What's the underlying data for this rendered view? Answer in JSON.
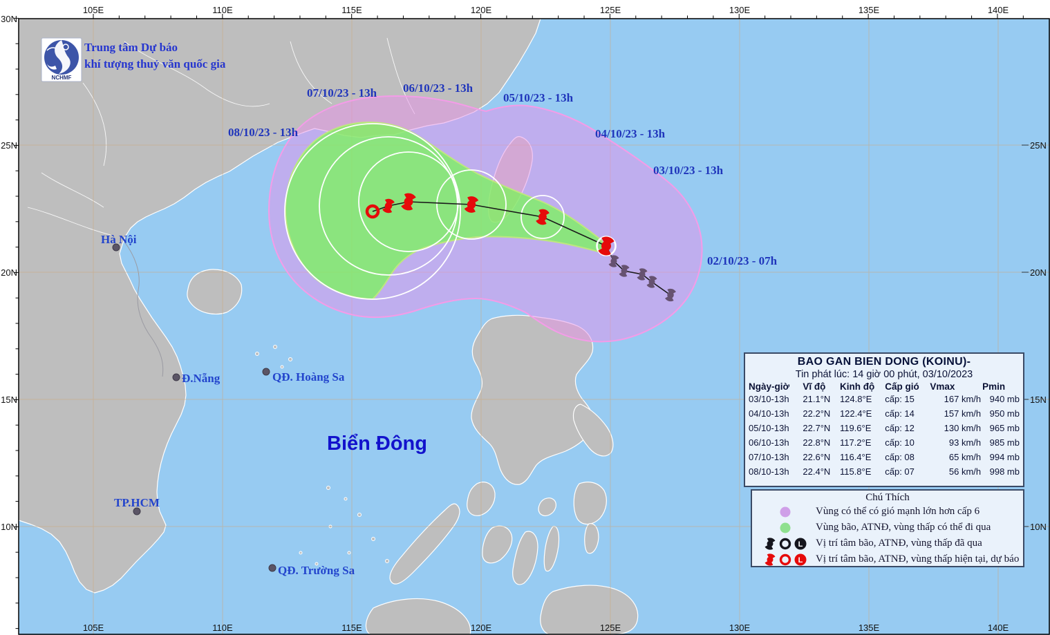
{
  "agency": {
    "line1": "Trung tâm Dự báo",
    "line2": "khí tượng thuỷ văn quốc gia",
    "logo_text": "NCHMF"
  },
  "map": {
    "sea_label": "Biển Đông",
    "lon_labels": [
      "105E",
      "110E",
      "115E",
      "120E",
      "125E",
      "130E",
      "135E",
      "140E"
    ],
    "left_lat_labels": [
      "30N",
      "25N",
      "20N",
      "15N",
      "10N"
    ],
    "right_lat_labels": [
      "25N",
      "20N",
      "15N",
      "10N"
    ],
    "cities": [
      {
        "name": "Hà Nội"
      },
      {
        "name": "Đ.Nẵng"
      },
      {
        "name": "TP.HCM"
      },
      {
        "name": "QĐ. Hoàng Sa"
      },
      {
        "name": "QĐ. Trường Sa"
      }
    ],
    "track_labels": [
      "08/10/23 - 13h",
      "07/10/23 - 13h",
      "06/10/23 - 13h",
      "05/10/23 - 13h",
      "04/10/23 - 13h",
      "03/10/23 - 13h",
      "02/10/23 - 07h"
    ]
  },
  "storm_table": {
    "title": "BAO GAN BIEN DONG (KOINU)-",
    "issued": "Tin phát lúc: 14 giờ 00 phút, 03/10/2023",
    "headers": [
      "Ngày-giờ",
      "Vĩ độ",
      "Kinh độ",
      "Cấp gió",
      "Vmax",
      "Pmin"
    ],
    "rows": [
      [
        "03/10-13h",
        "21.1°N",
        "124.8°E",
        "cấp: 15",
        "167 km/h",
        "940 mb"
      ],
      [
        "04/10-13h",
        "22.2°N",
        "122.4°E",
        "cấp: 14",
        "157 km/h",
        "950 mb"
      ],
      [
        "05/10-13h",
        "22.7°N",
        "119.6°E",
        "cấp: 12",
        "130 km/h",
        "965 mb"
      ],
      [
        "06/10-13h",
        "22.8°N",
        "117.2°E",
        "cấp: 10",
        "93 km/h",
        "985 mb"
      ],
      [
        "07/10-13h",
        "22.6°N",
        "116.4°E",
        "cấp: 08",
        "65 km/h",
        "994 mb"
      ],
      [
        "08/10-13h",
        "22.4°N",
        "115.8°E",
        "cấp: 07",
        "56 km/h",
        "998 mb"
      ]
    ]
  },
  "legend": {
    "title": "Chú Thích",
    "row1": "Vùng có thể có gió mạnh lớn hơn cấp 6",
    "row2": "Vùng bão, ATNĐ, vùng thấp có thể đi qua",
    "row3": "Vị trí tâm bão, ATNĐ, vùng thấp đã qua",
    "row4": "Vị trí tâm bão, ATNĐ, vùng thấp hiện tại, dự báo",
    "l_glyph": "L"
  },
  "colors": {
    "sea": "#97CBF2",
    "land": "#BEBEBE",
    "cone_purple": "#E791EA",
    "cone_green": "#7AF658",
    "cone_border": "#F49CE8",
    "green_border": "#BEE87E",
    "label_blue": "#1F35BB",
    "sea_label_blue": "#1212CC",
    "current_red": "#E60A0A",
    "past_symbol": "#665270",
    "panel_bg": "#EAF2FB"
  }
}
